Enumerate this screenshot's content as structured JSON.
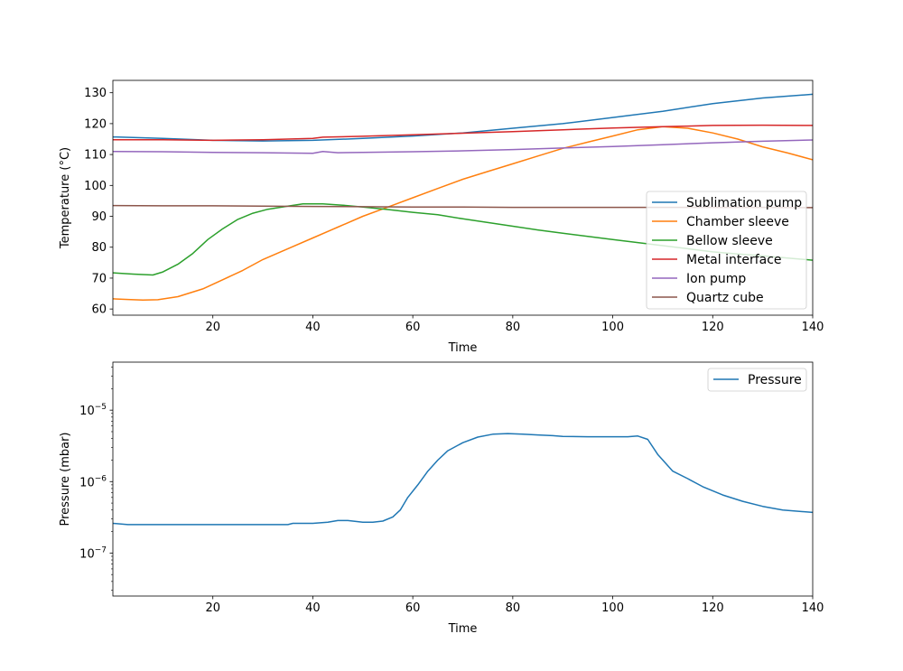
{
  "chart_data": [
    {
      "type": "line",
      "xlabel": "Time",
      "ylabel": "Temperature (°C)",
      "xlim": [
        0,
        140
      ],
      "ylim": [
        58,
        134
      ],
      "xticks": [
        20,
        40,
        60,
        80,
        100,
        120,
        140
      ],
      "yticks": [
        60,
        70,
        80,
        90,
        100,
        110,
        120,
        130
      ],
      "grid": false,
      "legend": "lower-right",
      "series": [
        {
          "name": "Sublimation pump",
          "color": "#1f77b4",
          "points": [
            [
              0,
              115.7
            ],
            [
              10,
              115.2
            ],
            [
              20,
              114.6
            ],
            [
              30,
              114.4
            ],
            [
              40,
              114.6
            ],
            [
              50,
              115.2
            ],
            [
              60,
              116.0
            ],
            [
              70,
              117.0
            ],
            [
              80,
              118.5
            ],
            [
              90,
              120.0
            ],
            [
              100,
              122.0
            ],
            [
              110,
              124.0
            ],
            [
              120,
              126.5
            ],
            [
              130,
              128.3
            ],
            [
              140,
              129.5
            ]
          ]
        },
        {
          "name": "Chamber sleeve",
          "color": "#ff7f0e",
          "points": [
            [
              0,
              63.3
            ],
            [
              3,
              63.1
            ],
            [
              6,
              62.9
            ],
            [
              9,
              63.0
            ],
            [
              13,
              64.0
            ],
            [
              18,
              66.5
            ],
            [
              22,
              69.5
            ],
            [
              26,
              72.5
            ],
            [
              30,
              76.0
            ],
            [
              35,
              79.5
            ],
            [
              40,
              83.0
            ],
            [
              45,
              86.5
            ],
            [
              50,
              90.0
            ],
            [
              55,
              93.0
            ],
            [
              60,
              96.0
            ],
            [
              65,
              99.0
            ],
            [
              70,
              102.0
            ],
            [
              75,
              104.5
            ],
            [
              80,
              107.0
            ],
            [
              85,
              109.5
            ],
            [
              90,
              112.0
            ],
            [
              95,
              114.0
            ],
            [
              100,
              116.0
            ],
            [
              105,
              118.0
            ],
            [
              110,
              119.0
            ],
            [
              115,
              118.5
            ],
            [
              120,
              117.0
            ],
            [
              125,
              115.0
            ],
            [
              130,
              112.5
            ],
            [
              135,
              110.5
            ],
            [
              140,
              108.3
            ]
          ]
        },
        {
          "name": "Bellow sleeve",
          "color": "#2ca02c",
          "points": [
            [
              0,
              71.7
            ],
            [
              4,
              71.3
            ],
            [
              8,
              71.0
            ],
            [
              10,
              72.0
            ],
            [
              13,
              74.5
            ],
            [
              16,
              78.0
            ],
            [
              19,
              82.5
            ],
            [
              22,
              86.0
            ],
            [
              25,
              89.0
            ],
            [
              28,
              91.0
            ],
            [
              31,
              92.3
            ],
            [
              35,
              93.3
            ],
            [
              38,
              94.0
            ],
            [
              42,
              94.0
            ],
            [
              46,
              93.6
            ],
            [
              50,
              93.0
            ],
            [
              55,
              92.2
            ],
            [
              60,
              91.3
            ],
            [
              65,
              90.5
            ],
            [
              70,
              89.2
            ],
            [
              75,
              88.0
            ],
            [
              80,
              86.8
            ],
            [
              85,
              85.6
            ],
            [
              90,
              84.5
            ],
            [
              95,
              83.5
            ],
            [
              100,
              82.5
            ],
            [
              105,
              81.5
            ],
            [
              110,
              80.5
            ],
            [
              115,
              79.5
            ],
            [
              120,
              78.5
            ],
            [
              125,
              77.8
            ],
            [
              130,
              77.2
            ],
            [
              135,
              76.5
            ],
            [
              140,
              75.8
            ]
          ]
        },
        {
          "name": "Metal interface",
          "color": "#d62728",
          "points": [
            [
              0,
              114.8
            ],
            [
              10,
              114.8
            ],
            [
              20,
              114.6
            ],
            [
              30,
              114.8
            ],
            [
              40,
              115.2
            ],
            [
              42,
              115.6
            ],
            [
              50,
              115.9
            ],
            [
              60,
              116.4
            ],
            [
              70,
              116.9
            ],
            [
              80,
              117.4
            ],
            [
              90,
              118.0
            ],
            [
              100,
              118.6
            ],
            [
              110,
              119.0
            ],
            [
              120,
              119.4
            ],
            [
              130,
              119.5
            ],
            [
              140,
              119.4
            ]
          ]
        },
        {
          "name": "Ion pump",
          "color": "#9467bd",
          "points": [
            [
              0,
              111.0
            ],
            [
              10,
              110.9
            ],
            [
              20,
              110.7
            ],
            [
              30,
              110.6
            ],
            [
              40,
              110.4
            ],
            [
              42,
              111.0
            ],
            [
              45,
              110.6
            ],
            [
              50,
              110.7
            ],
            [
              60,
              110.9
            ],
            [
              70,
              111.2
            ],
            [
              80,
              111.6
            ],
            [
              90,
              112.1
            ],
            [
              100,
              112.6
            ],
            [
              110,
              113.2
            ],
            [
              120,
              113.8
            ],
            [
              130,
              114.3
            ],
            [
              140,
              114.7
            ]
          ]
        },
        {
          "name": "Quartz cube",
          "color": "#8c564b",
          "points": [
            [
              0,
              93.5
            ],
            [
              10,
              93.4
            ],
            [
              20,
              93.4
            ],
            [
              30,
              93.3
            ],
            [
              40,
              93.2
            ],
            [
              50,
              93.1
            ],
            [
              60,
              93.0
            ],
            [
              70,
              93.0
            ],
            [
              80,
              92.9
            ],
            [
              90,
              92.9
            ],
            [
              100,
              92.9
            ],
            [
              110,
              92.9
            ],
            [
              120,
              92.9
            ],
            [
              130,
              92.9
            ],
            [
              140,
              92.8
            ]
          ]
        }
      ]
    },
    {
      "type": "line",
      "xlabel": "Time",
      "ylabel": "Pressure (mbar)",
      "xlim": [
        0,
        140
      ],
      "yscale": "log",
      "ylim": [
        2.5e-08,
        4.7e-05
      ],
      "xticks": [
        20,
        40,
        60,
        80,
        100,
        120,
        140
      ],
      "yticks": [
        1e-07,
        1e-06,
        1e-05
      ],
      "ytick_labels": [
        {
          "base": "10",
          "exp": "−7"
        },
        {
          "base": "10",
          "exp": "−6"
        },
        {
          "base": "10",
          "exp": "−5"
        }
      ],
      "grid": false,
      "legend": "upper-right",
      "series": [
        {
          "name": "Pressure",
          "color": "#1f77b4",
          "points": [
            [
              0,
              2.6e-07
            ],
            [
              3,
              2.5e-07
            ],
            [
              10,
              2.5e-07
            ],
            [
              20,
              2.5e-07
            ],
            [
              30,
              2.5e-07
            ],
            [
              35,
              2.5e-07
            ],
            [
              36,
              2.6e-07
            ],
            [
              40,
              2.6e-07
            ],
            [
              43,
              2.7e-07
            ],
            [
              45,
              2.85e-07
            ],
            [
              47,
              2.85e-07
            ],
            [
              50,
              2.7e-07
            ],
            [
              52,
              2.7e-07
            ],
            [
              54,
              2.8e-07
            ],
            [
              56,
              3.2e-07
            ],
            [
              57.5,
              4e-07
            ],
            [
              59,
              6e-07
            ],
            [
              61,
              9e-07
            ],
            [
              63,
              1.4e-06
            ],
            [
              65,
              2e-06
            ],
            [
              67,
              2.7e-06
            ],
            [
              70,
              3.5e-06
            ],
            [
              73,
              4.2e-06
            ],
            [
              76,
              4.6e-06
            ],
            [
              79,
              4.7e-06
            ],
            [
              82,
              4.6e-06
            ],
            [
              85,
              4.5e-06
            ],
            [
              88,
              4.4e-06
            ],
            [
              90,
              4.3e-06
            ],
            [
              95,
              4.25e-06
            ],
            [
              100,
              4.25e-06
            ],
            [
              103,
              4.25e-06
            ],
            [
              105,
              4.35e-06
            ],
            [
              107,
              3.9e-06
            ],
            [
              109,
              2.4e-06
            ],
            [
              112,
              1.4e-06
            ],
            [
              115,
              1.1e-06
            ],
            [
              118,
              8.5e-07
            ],
            [
              122,
              6.5e-07
            ],
            [
              126,
              5.3e-07
            ],
            [
              130,
              4.5e-07
            ],
            [
              134,
              4e-07
            ],
            [
              140,
              3.7e-07
            ]
          ]
        }
      ]
    }
  ]
}
